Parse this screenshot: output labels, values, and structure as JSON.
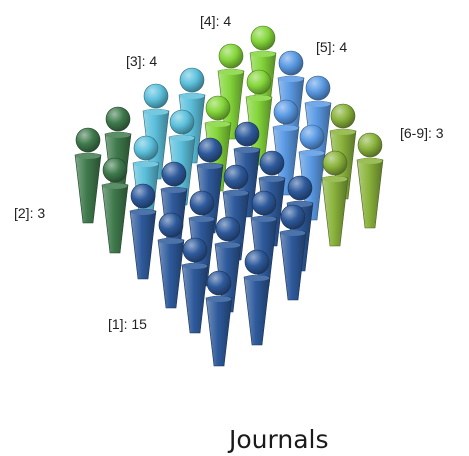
{
  "chart_data": {
    "type": "pictograph",
    "title": "Journals",
    "groups": [
      {
        "label": "[1]: 15",
        "category": "[1]",
        "value": 15,
        "color": "#2e5a9c"
      },
      {
        "label": "[2]: 3",
        "category": "[2]",
        "value": 3,
        "color": "#3f7a4c"
      },
      {
        "label": "[3]: 4",
        "category": "[3]",
        "value": 4,
        "color": "#5cc0dc"
      },
      {
        "label": "[4]: 4",
        "category": "[4]",
        "value": 4,
        "color": "#84d63a"
      },
      {
        "label": "[5]: 4",
        "category": "[5]",
        "value": 4,
        "color": "#5a9ae4"
      },
      {
        "label": "[6-9]: 3",
        "category": "[6-9]",
        "value": 3,
        "color": "#8ab33c"
      }
    ]
  }
}
